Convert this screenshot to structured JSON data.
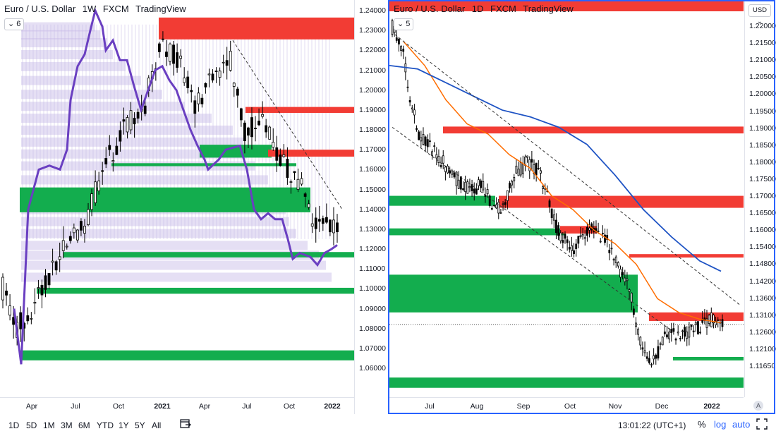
{
  "colors": {
    "up_candle": "#ffffff",
    "down_candle": "#000000",
    "wick": "#000000",
    "supply_zone": "#f23c34",
    "demand_zone": "#13ad4e",
    "volume_profile": "#c5b9e6",
    "purple_line": "#6a3fc1",
    "ema_fast": "#ff6d00",
    "ema_slow": "#1e53c4",
    "trendline": "#333333",
    "accent": "#2962ff"
  },
  "left_chart": {
    "legend": {
      "symbol": "Euro / U.S. Dollar",
      "interval": "1W",
      "source": "FXCM",
      "platform": "TradingView"
    },
    "badge": "6",
    "y_axis": [
      "1.24000",
      "1.23000",
      "1.22000",
      "1.21000",
      "1.20000",
      "1.19000",
      "1.18000",
      "1.17000",
      "1.16000",
      "1.15000",
      "1.14000",
      "1.13000",
      "1.12000",
      "1.11000",
      "1.10000",
      "1.09000",
      "1.08000",
      "1.07000",
      "1.06000"
    ],
    "x_axis": [
      {
        "label": "Apr",
        "bold": false
      },
      {
        "label": "Jul",
        "bold": false
      },
      {
        "label": "Oct",
        "bold": false
      },
      {
        "label": "2021",
        "bold": true
      },
      {
        "label": "Apr",
        "bold": false
      },
      {
        "label": "Jul",
        "bold": false
      },
      {
        "label": "Oct",
        "bold": false
      },
      {
        "label": "2022",
        "bold": true
      }
    ]
  },
  "right_chart": {
    "legend": {
      "symbol": "Euro / U.S. Dollar",
      "interval": "1D",
      "source": "FXCM",
      "platform": "TradingView"
    },
    "badge": "5",
    "currency": "USD",
    "y_axis": [
      "1.22000",
      "1.21500",
      "1.21000",
      "1.20500",
      "1.20000",
      "1.19500",
      "1.19000",
      "1.18500",
      "1.18000",
      "1.17500",
      "1.17000",
      "1.16500",
      "1.16000",
      "1.15400",
      "1.14800",
      "1.14200",
      "1.13600",
      "1.13100",
      "1.12600",
      "1.12100",
      "1.11650"
    ],
    "x_axis": [
      {
        "label": "Jul",
        "bold": false
      },
      {
        "label": "Aug",
        "bold": false
      },
      {
        "label": "Sep",
        "bold": false
      },
      {
        "label": "Oct",
        "bold": false
      },
      {
        "label": "Nov",
        "bold": false
      },
      {
        "label": "Dec",
        "bold": false
      },
      {
        "label": "2022",
        "bold": true
      }
    ],
    "auto_button": "A"
  },
  "bottom_bar": {
    "ranges": [
      "1D",
      "5D",
      "1M",
      "3M",
      "6M",
      "YTD",
      "1Y",
      "5Y",
      "All"
    ],
    "time": "13:01:22 (UTC+1)",
    "percent": "%",
    "log": "log",
    "auto": "auto"
  },
  "chart_data": [
    {
      "type": "candlestick",
      "title": "Euro / U.S. Dollar · 1W · FXCM",
      "ylim": [
        1.055,
        1.242
      ],
      "x_range": [
        "2020-03",
        "2022-01"
      ],
      "grid": false,
      "supply_zones": [
        [
          1.2255,
          1.2365
        ],
        [
          1.1885,
          1.1915
        ],
        [
          1.1665,
          1.17
        ]
      ],
      "demand_zones": [
        [
          1.166,
          1.1725
        ],
        [
          1.1617,
          1.1632
        ],
        [
          1.1385,
          1.151
        ],
        [
          1.1158,
          1.1185
        ],
        [
          1.0975,
          1.1005
        ],
        [
          1.064,
          1.069
        ]
      ],
      "ohlc_sample": [
        {
          "x": "2020-03",
          "o": 1.105,
          "h": 1.149,
          "l": 1.064,
          "c": 1.08
        },
        {
          "x": "2020-06",
          "o": 1.11,
          "h": 1.142,
          "l": 1.093,
          "c": 1.125
        },
        {
          "x": "2020-09",
          "o": 1.184,
          "h": 1.201,
          "l": 1.162,
          "c": 1.172
        },
        {
          "x": "2021-01",
          "o": 1.216,
          "h": 1.234,
          "l": 1.205,
          "c": 1.212
        },
        {
          "x": "2021-03",
          "o": 1.193,
          "h": 1.198,
          "l": 1.17,
          "c": 1.174
        },
        {
          "x": "2021-05",
          "o": 1.216,
          "h": 1.226,
          "l": 1.208,
          "c": 1.221
        },
        {
          "x": "2021-08",
          "o": 1.178,
          "h": 1.19,
          "l": 1.166,
          "c": 1.18
        },
        {
          "x": "2021-10",
          "o": 1.16,
          "h": 1.169,
          "l": 1.152,
          "c": 1.16
        },
        {
          "x": "2021-12",
          "o": 1.131,
          "h": 1.138,
          "l": 1.119,
          "c": 1.137
        }
      ]
    },
    {
      "type": "candlestick",
      "title": "Euro / U.S. Dollar · 1D · FXCM",
      "ylim": [
        1.113,
        1.225
      ],
      "x_range": [
        "2021-06",
        "2022-01"
      ],
      "grid": false,
      "supply_zones": [
        [
          1.1882,
          1.1902
        ],
        [
          1.1665,
          1.17
        ],
        [
          1.159,
          1.1612
        ],
        [
          1.152,
          1.153
        ],
        [
          1.1335,
          1.136
        ]
      ],
      "demand_zones": [
        [
          1.1671,
          1.17
        ],
        [
          1.1585,
          1.1605
        ],
        [
          1.136,
          1.147
        ],
        [
          1.122,
          1.123
        ],
        [
          1.114,
          1.117
        ]
      ],
      "ohlc_sample": [
        {
          "x": "2021-06-01",
          "o": 1.221,
          "h": 1.224,
          "l": 1.213,
          "c": 1.217
        },
        {
          "x": "2021-06-20",
          "o": 1.191,
          "h": 1.196,
          "l": 1.185,
          "c": 1.188
        },
        {
          "x": "2021-08-20",
          "o": 1.168,
          "h": 1.175,
          "l": 1.166,
          "c": 1.172
        },
        {
          "x": "2021-09-03",
          "o": 1.185,
          "h": 1.19,
          "l": 1.18,
          "c": 1.188
        },
        {
          "x": "2021-10-12",
          "o": 1.155,
          "h": 1.16,
          "l": 1.152,
          "c": 1.154
        },
        {
          "x": "2021-11-24",
          "o": 1.121,
          "h": 1.125,
          "l": 1.118,
          "c": 1.122
        },
        {
          "x": "2021-12-31",
          "o": 1.132,
          "h": 1.139,
          "l": 1.128,
          "c": 1.137
        }
      ]
    }
  ]
}
